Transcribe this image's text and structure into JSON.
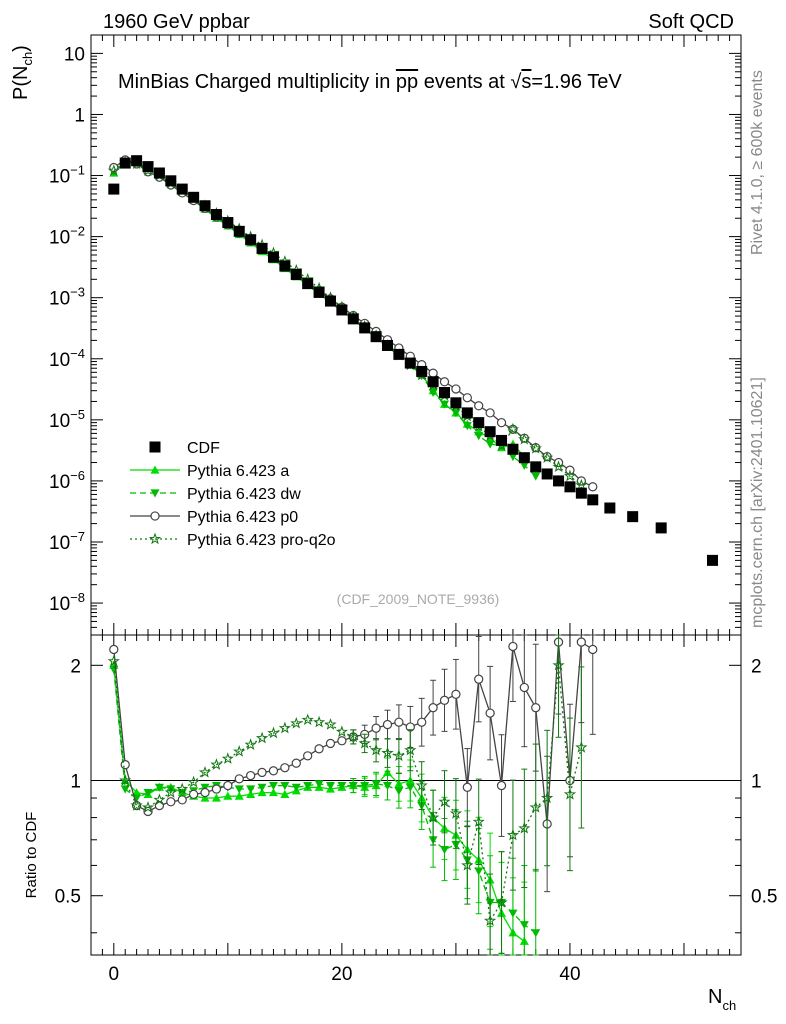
{
  "header": {
    "left": "1960 GeV ppbar",
    "right": "Soft QCD"
  },
  "title_parts": {
    "pre": "MinBias Charged multiplicity in ",
    "process": "pp",
    "mid": " events at ",
    "sqrt_s": "s",
    "post": "=1.96 TeV"
  },
  "side_labels": {
    "rivet": "Rivet 4.1.0, ≥ 600k events",
    "mcplots": "mcplots.cern.ch [arXiv:2401.10621]"
  },
  "analysis_id": "(CDF_2009_NOTE_9936)",
  "colors": {
    "data": "#000000",
    "pythia_a": "#00dd00",
    "pythia_dw": "#00bb00",
    "pythia_p0": "#444444",
    "pythia_proq2o": "#117711"
  },
  "chart_data": [
    {
      "type": "scatter",
      "panel": "main",
      "title": "MinBias Charged multiplicity in pp events at √s=1.96 TeV",
      "xlabel": "N",
      "xlabel_sub": "ch",
      "ylabel": "P(N",
      "ylabel_sub": "ch",
      "ylabel_close": ")",
      "yscale": "log",
      "xlim": [
        -2,
        55
      ],
      "ylim": [
        3e-09,
        20
      ],
      "y_ticks": [
        {
          "v": 10,
          "label": "10"
        },
        {
          "v": 1,
          "label": "1"
        },
        {
          "v": 0.1,
          "base": "10",
          "exp": "−1"
        },
        {
          "v": 0.01,
          "base": "10",
          "exp": "−2"
        },
        {
          "v": 0.001,
          "base": "10",
          "exp": "−3"
        },
        {
          "v": 0.0001,
          "base": "10",
          "exp": "−4"
        },
        {
          "v": 1e-05,
          "base": "10",
          "exp": "−5"
        },
        {
          "v": 1e-06,
          "base": "10",
          "exp": "−6"
        },
        {
          "v": 1e-07,
          "base": "10",
          "exp": "−7"
        },
        {
          "v": 1e-08,
          "base": "10",
          "exp": "−8"
        }
      ],
      "x_ticks": [
        0,
        20,
        40
      ],
      "legend_position": "bottom-left",
      "series": [
        {
          "name": "CDF",
          "marker": "square",
          "x": [
            0,
            1,
            2,
            3,
            4,
            5,
            6,
            7,
            8,
            9,
            10,
            11,
            12,
            13,
            14,
            15,
            16,
            17,
            18,
            19,
            20,
            21,
            22,
            23,
            24,
            25,
            26,
            27,
            28,
            29,
            30,
            31,
            32,
            33,
            34,
            35,
            36,
            37,
            38,
            39,
            40,
            41,
            42,
            43.5,
            45.5,
            48,
            52.5
          ],
          "y": [
            0.06,
            0.16,
            0.175,
            0.14,
            0.11,
            0.082,
            0.06,
            0.044,
            0.032,
            0.023,
            0.017,
            0.0122,
            0.0089,
            0.0064,
            0.0046,
            0.0033,
            0.0024,
            0.0017,
            0.00122,
            0.00088,
            0.00063,
            0.00045,
            0.00032,
            0.00023,
            0.000165,
            0.000118,
            8.5e-05,
            6.2e-05,
            4.2e-05,
            2.8e-05,
            1.9e-05,
            1.3e-05,
            9e-06,
            6.4e-06,
            4.6e-06,
            3.3e-06,
            2.4e-06,
            1.7e-06,
            1.3e-06,
            1e-06,
            8e-07,
            6.3e-07,
            4.9e-07,
            3.6e-07,
            2.6e-07,
            1.7e-07,
            5e-08
          ]
        },
        {
          "name": "Pythia 6.423 a",
          "marker": "triangle-up",
          "line": "solid",
          "x": [
            0,
            1,
            2,
            3,
            4,
            5,
            6,
            7,
            8,
            9,
            10,
            11,
            12,
            13,
            14,
            15,
            16,
            17,
            18,
            19,
            20,
            21,
            22,
            23,
            24,
            25,
            26,
            27,
            28,
            29,
            30,
            31,
            32,
            33,
            34,
            35,
            36
          ],
          "y": [
            0.11,
            0.17,
            0.165,
            0.125,
            0.1,
            0.073,
            0.053,
            0.039,
            0.028,
            0.02,
            0.015,
            0.0108,
            0.0079,
            0.0057,
            0.0042,
            0.003,
            0.0022,
            0.0016,
            0.00115,
            0.00083,
            0.0006,
            0.00044,
            0.00031,
            0.00022,
            0.00017,
            0.00012,
            8.5e-05,
            5.5e-05,
            3e-05,
            1.8e-05,
            1.3e-05,
            8.5e-06,
            6.4e-06,
            5e-06,
            3.5e-06,
            4e-06,
            2.5e-06
          ]
        },
        {
          "name": "Pythia 6.423 dw",
          "marker": "triangle-down",
          "line": "dashed",
          "x": [
            0,
            1,
            2,
            3,
            4,
            5,
            6,
            7,
            8,
            9,
            10,
            11,
            12,
            13,
            14,
            15,
            16,
            17,
            18,
            19,
            20,
            21,
            22,
            23,
            24,
            25,
            26,
            27,
            28,
            29,
            30,
            31,
            32,
            33,
            34,
            35,
            36,
            37
          ],
          "y": [
            0.115,
            0.165,
            0.16,
            0.125,
            0.102,
            0.075,
            0.056,
            0.041,
            0.03,
            0.022,
            0.016,
            0.0116,
            0.0084,
            0.0061,
            0.0045,
            0.0032,
            0.0023,
            0.0017,
            0.0012,
            0.00085,
            0.00061,
            0.00044,
            0.00031,
            0.00022,
            0.000158,
            0.000112,
            8e-05,
            5.3e-05,
            2.8e-05,
            1.8e-05,
            1.3e-05,
            8e-06,
            5.5e-06,
            4e-06,
            3.8e-06,
            2.5e-06,
            1.8e-06,
            1.2e-06
          ]
        },
        {
          "name": "Pythia 6.423 p0",
          "marker": "open-circle",
          "line": "solid",
          "x": [
            0,
            1,
            2,
            3,
            4,
            5,
            6,
            7,
            8,
            9,
            10,
            11,
            12,
            13,
            14,
            15,
            16,
            17,
            18,
            19,
            20,
            21,
            22,
            23,
            24,
            25,
            26,
            27,
            28,
            29,
            30,
            31,
            32,
            33,
            34,
            35,
            36,
            37,
            38,
            39,
            40,
            41,
            42
          ],
          "y": [
            0.135,
            0.18,
            0.155,
            0.115,
            0.094,
            0.07,
            0.052,
            0.039,
            0.029,
            0.021,
            0.0156,
            0.0114,
            0.0084,
            0.0062,
            0.0046,
            0.0034,
            0.0025,
            0.0018,
            0.00132,
            0.00096,
            0.0007,
            0.00051,
            0.00038,
            0.00028,
            0.000205,
            0.00015,
            0.00011,
            8e-05,
            5.8e-05,
            4.2e-05,
            3.2e-05,
            2.3e-05,
            1.7e-05,
            1.3e-05,
            9e-06,
            7e-06,
            5e-06,
            3.5e-06,
            2.5e-06,
            2e-06,
            1.5e-06,
            1e-06,
            8e-07
          ]
        },
        {
          "name": "Pythia 6.423 pro-q2o",
          "marker": "star",
          "line": "dotted",
          "x": [
            0,
            1,
            2,
            3,
            4,
            5,
            6,
            7,
            8,
            9,
            10,
            11,
            12,
            13,
            14,
            15,
            16,
            17,
            18,
            19,
            20,
            21,
            22,
            23,
            24,
            25,
            26,
            27,
            28,
            29,
            30,
            31,
            32,
            33,
            34,
            35,
            36,
            37,
            38,
            39,
            40,
            41
          ],
          "y": [
            0.12,
            0.165,
            0.155,
            0.12,
            0.1,
            0.075,
            0.057,
            0.043,
            0.032,
            0.024,
            0.018,
            0.0134,
            0.0099,
            0.0073,
            0.0054,
            0.0039,
            0.0028,
            0.002,
            0.00142,
            0.001,
            0.0007,
            0.00049,
            0.00034,
            0.00024,
            0.000165,
            0.000114,
            7.9e-05,
            5.4e-05,
            3.7e-05,
            2.5e-05,
            1.7e-05,
            1.15e-05,
            7.8e-06,
            5.5e-06,
            3.8e-06,
            7e-06,
            4.8e-06,
            3.4e-06,
            2.4e-06,
            1.7e-06,
            1.2e-06,
            8.5e-07
          ]
        }
      ]
    },
    {
      "type": "line",
      "panel": "ratio",
      "ylabel": "Ratio to CDF",
      "yscale": "log",
      "xlim": [
        -2,
        55
      ],
      "ylim": [
        0.35,
        2.4
      ],
      "y_ticks": [
        {
          "v": 2,
          "label": "2"
        },
        {
          "v": 1,
          "label": "1"
        },
        {
          "v": 0.5,
          "label": "0.5"
        }
      ],
      "x_ticks": [
        0,
        20,
        40
      ],
      "reference_line": 1,
      "series": [
        {
          "name": "Pythia 6.423 a",
          "x": [
            0,
            1,
            2,
            3,
            4,
            5,
            6,
            7,
            8,
            9,
            10,
            11,
            12,
            13,
            14,
            15,
            16,
            17,
            18,
            19,
            20,
            21,
            22,
            23,
            24,
            25,
            26,
            27,
            28,
            29,
            30,
            31,
            32,
            33,
            34,
            35,
            36
          ],
          "y": [
            2.0,
            1.0,
            0.93,
            0.92,
            0.96,
            0.96,
            0.93,
            0.91,
            0.9,
            0.9,
            0.91,
            0.91,
            0.92,
            0.93,
            0.93,
            0.92,
            0.94,
            0.96,
            0.96,
            0.95,
            0.96,
            0.97,
            0.96,
            0.97,
            1.05,
            0.98,
            1.0,
            0.9,
            0.8,
            0.75,
            0.72,
            0.66,
            0.62,
            0.55,
            0.45,
            0.4,
            0.38
          ]
        },
        {
          "name": "Pythia 6.423 dw",
          "x": [
            0,
            1,
            2,
            3,
            4,
            5,
            6,
            7,
            8,
            9,
            10,
            11,
            12,
            13,
            14,
            15,
            16,
            17,
            18,
            19,
            20,
            21,
            22,
            23,
            24,
            25,
            26,
            27,
            28,
            29,
            30,
            31,
            32,
            33,
            34,
            35,
            36,
            37
          ],
          "y": [
            1.95,
            0.95,
            0.9,
            0.93,
            0.96,
            0.95,
            0.93,
            0.94,
            0.96,
            0.97,
            0.96,
            0.95,
            0.95,
            0.96,
            0.97,
            0.97,
            0.96,
            0.97,
            0.98,
            0.97,
            0.97,
            0.97,
            0.97,
            0.98,
            0.97,
            0.94,
            0.96,
            0.86,
            0.7,
            0.66,
            0.68,
            0.62,
            0.58,
            0.48,
            0.48,
            0.45,
            0.42,
            0.4
          ]
        },
        {
          "name": "Pythia 6.423 p0",
          "x": [
            0,
            1,
            2,
            3,
            4,
            5,
            6,
            7,
            8,
            9,
            10,
            11,
            12,
            13,
            14,
            15,
            16,
            17,
            18,
            19,
            20,
            21,
            22,
            23,
            24,
            25,
            26,
            27,
            28,
            29,
            30,
            31,
            32,
            33,
            34,
            35,
            36,
            37,
            38,
            39,
            40,
            41,
            42
          ],
          "y": [
            2.2,
            1.1,
            0.86,
            0.83,
            0.86,
            0.88,
            0.89,
            0.92,
            0.93,
            0.95,
            0.97,
            1.01,
            1.03,
            1.05,
            1.06,
            1.08,
            1.11,
            1.16,
            1.21,
            1.25,
            1.27,
            1.3,
            1.32,
            1.37,
            1.4,
            1.42,
            1.38,
            1.42,
            1.55,
            1.62,
            1.68,
            0.96,
            1.84,
            1.5,
            0.97,
            2.24,
            1.75,
            1.55,
            0.77,
            2.3,
            1.0,
            2.3,
            2.2
          ]
        },
        {
          "name": "Pythia 6.423 pro-q2o",
          "x": [
            0,
            1,
            2,
            3,
            4,
            5,
            6,
            7,
            8,
            9,
            10,
            11,
            12,
            13,
            14,
            15,
            16,
            17,
            18,
            19,
            20,
            21,
            22,
            23,
            24,
            25,
            26,
            27,
            28,
            29,
            30,
            31,
            32,
            33,
            34,
            35,
            36,
            37,
            38,
            39,
            40,
            41
          ],
          "y": [
            2.05,
            1.0,
            0.86,
            0.85,
            0.89,
            0.93,
            0.95,
            0.99,
            1.05,
            1.1,
            1.14,
            1.19,
            1.24,
            1.29,
            1.33,
            1.37,
            1.41,
            1.44,
            1.42,
            1.4,
            1.34,
            1.3,
            1.25,
            1.2,
            1.18,
            1.16,
            1.2,
            0.97,
            0.8,
            0.88,
            0.82,
            0.6,
            0.78,
            0.43,
            0.48,
            0.72,
            0.75,
            0.85,
            0.9,
            2.0,
            0.92,
            1.22
          ]
        }
      ]
    }
  ]
}
